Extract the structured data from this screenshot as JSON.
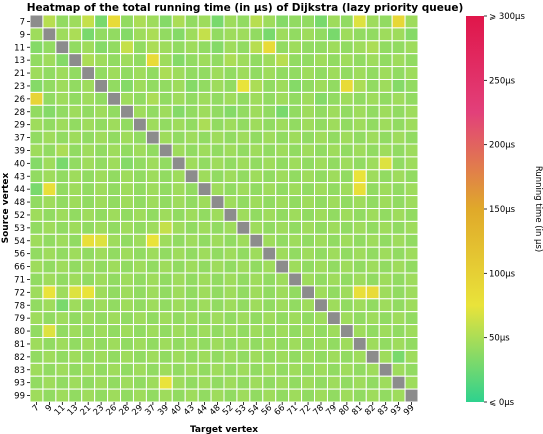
{
  "chart_data": {
    "type": "heatmap",
    "title": "Heatmap of the total running time (in μs) of Dijkstra (lazy priority queue)",
    "xlabel": "Target vertex",
    "ylabel": "Source vertex",
    "row_labels": [
      "7",
      "9",
      "11",
      "13",
      "21",
      "23",
      "26",
      "28",
      "29",
      "37",
      "39",
      "40",
      "43",
      "44",
      "48",
      "52",
      "53",
      "54",
      "56",
      "66",
      "71",
      "72",
      "78",
      "79",
      "80",
      "81",
      "82",
      "83",
      "93",
      "99"
    ],
    "col_labels": [
      "7",
      "9",
      "11",
      "13",
      "21",
      "23",
      "26",
      "28",
      "29",
      "37",
      "39",
      "40",
      "43",
      "44",
      "48",
      "52",
      "53",
      "54",
      "56",
      "66",
      "71",
      "72",
      "78",
      "79",
      "80",
      "81",
      "82",
      "83",
      "93",
      "99"
    ],
    "values": [
      [
        null,
        55,
        40,
        45,
        60,
        30,
        85,
        40,
        50,
        45,
        35,
        50,
        40,
        45,
        30,
        45,
        40,
        55,
        45,
        35,
        40,
        40,
        30,
        45,
        40,
        70,
        45,
        40,
        90,
        45
      ],
      [
        45,
        null,
        45,
        50,
        30,
        40,
        40,
        35,
        45,
        50,
        40,
        35,
        45,
        60,
        40,
        45,
        45,
        40,
        30,
        45,
        40,
        45,
        40,
        30,
        45,
        40,
        40,
        45,
        45,
        35
      ],
      [
        35,
        40,
        null,
        40,
        45,
        35,
        40,
        60,
        40,
        50,
        45,
        40,
        45,
        40,
        35,
        45,
        40,
        55,
        85,
        40,
        45,
        40,
        40,
        45,
        40,
        45,
        50,
        40,
        40,
        45
      ],
      [
        40,
        45,
        35,
        null,
        50,
        45,
        40,
        45,
        40,
        85,
        45,
        35,
        40,
        45,
        40,
        50,
        45,
        40,
        45,
        55,
        40,
        40,
        45,
        40,
        45,
        40,
        45,
        40,
        45,
        40
      ],
      [
        45,
        40,
        45,
        40,
        null,
        40,
        45,
        40,
        45,
        40,
        50,
        45,
        40,
        40,
        45,
        40,
        45,
        40,
        45,
        40,
        40,
        45,
        40,
        45,
        40,
        45,
        40,
        45,
        40,
        45
      ],
      [
        35,
        40,
        45,
        40,
        45,
        null,
        40,
        35,
        45,
        40,
        40,
        45,
        35,
        40,
        45,
        40,
        75,
        50,
        40,
        45,
        35,
        40,
        45,
        40,
        85,
        50,
        40,
        45,
        35,
        40
      ],
      [
        95,
        40,
        45,
        40,
        45,
        40,
        null,
        45,
        40,
        50,
        40,
        45,
        40,
        45,
        40,
        45,
        40,
        45,
        40,
        45,
        40,
        45,
        35,
        40,
        45,
        40,
        45,
        40,
        45,
        40
      ],
      [
        40,
        35,
        40,
        45,
        40,
        45,
        40,
        null,
        45,
        40,
        45,
        35,
        40,
        45,
        40,
        35,
        40,
        45,
        40,
        30,
        40,
        45,
        40,
        45,
        40,
        45,
        40,
        45,
        40,
        45
      ],
      [
        45,
        40,
        45,
        40,
        45,
        40,
        45,
        40,
        null,
        45,
        40,
        45,
        40,
        50,
        40,
        45,
        40,
        45,
        40,
        45,
        40,
        45,
        40,
        45,
        40,
        45,
        40,
        45,
        40,
        45
      ],
      [
        40,
        45,
        40,
        45,
        40,
        45,
        40,
        45,
        40,
        null,
        45,
        40,
        45,
        40,
        45,
        40,
        45,
        40,
        45,
        40,
        45,
        40,
        45,
        40,
        45,
        40,
        45,
        40,
        45,
        40
      ],
      [
        45,
        40,
        50,
        40,
        45,
        40,
        45,
        40,
        45,
        40,
        null,
        45,
        40,
        45,
        40,
        45,
        40,
        45,
        40,
        45,
        40,
        45,
        40,
        45,
        40,
        45,
        40,
        45,
        40,
        45
      ],
      [
        35,
        45,
        30,
        40,
        45,
        40,
        45,
        35,
        40,
        45,
        40,
        null,
        45,
        40,
        45,
        40,
        45,
        40,
        45,
        40,
        45,
        40,
        45,
        40,
        45,
        40,
        45,
        70,
        40,
        45
      ],
      [
        40,
        45,
        40,
        45,
        40,
        45,
        40,
        45,
        40,
        45,
        40,
        45,
        null,
        45,
        40,
        45,
        40,
        45,
        40,
        45,
        40,
        45,
        40,
        45,
        40,
        75,
        45,
        40,
        45,
        40
      ],
      [
        30,
        80,
        40,
        45,
        40,
        45,
        40,
        45,
        40,
        45,
        40,
        45,
        40,
        null,
        45,
        40,
        45,
        40,
        45,
        40,
        45,
        40,
        45,
        40,
        45,
        80,
        40,
        45,
        40,
        45
      ],
      [
        40,
        45,
        40,
        45,
        40,
        45,
        40,
        45,
        40,
        45,
        40,
        45,
        40,
        45,
        null,
        45,
        40,
        45,
        40,
        45,
        40,
        45,
        40,
        45,
        40,
        45,
        40,
        45,
        40,
        45
      ],
      [
        45,
        40,
        45,
        40,
        45,
        40,
        45,
        40,
        45,
        40,
        45,
        40,
        45,
        40,
        45,
        null,
        45,
        40,
        45,
        40,
        45,
        40,
        45,
        40,
        45,
        40,
        45,
        40,
        45,
        40
      ],
      [
        40,
        45,
        40,
        45,
        40,
        45,
        40,
        45,
        40,
        45,
        60,
        45,
        40,
        45,
        40,
        45,
        null,
        45,
        40,
        45,
        40,
        45,
        40,
        45,
        40,
        45,
        40,
        45,
        40,
        45
      ],
      [
        45,
        40,
        45,
        40,
        80,
        70,
        45,
        40,
        45,
        75,
        45,
        40,
        45,
        40,
        45,
        40,
        45,
        null,
        45,
        40,
        45,
        40,
        45,
        40,
        45,
        40,
        45,
        40,
        45,
        40
      ],
      [
        40,
        45,
        40,
        45,
        40,
        45,
        40,
        45,
        40,
        45,
        40,
        45,
        40,
        45,
        40,
        45,
        40,
        45,
        null,
        45,
        40,
        45,
        40,
        45,
        40,
        45,
        40,
        45,
        40,
        45
      ],
      [
        45,
        40,
        45,
        40,
        45,
        40,
        45,
        40,
        45,
        40,
        45,
        40,
        45,
        40,
        45,
        40,
        45,
        40,
        45,
        null,
        45,
        40,
        45,
        40,
        45,
        40,
        45,
        40,
        45,
        40
      ],
      [
        40,
        45,
        40,
        45,
        40,
        45,
        40,
        45,
        40,
        45,
        40,
        45,
        40,
        45,
        40,
        45,
        40,
        45,
        40,
        45,
        null,
        45,
        40,
        45,
        40,
        45,
        40,
        45,
        40,
        45
      ],
      [
        45,
        75,
        45,
        70,
        75,
        45,
        40,
        45,
        40,
        45,
        40,
        45,
        40,
        45,
        40,
        45,
        40,
        45,
        40,
        45,
        40,
        null,
        45,
        40,
        45,
        80,
        85,
        45,
        40,
        45
      ],
      [
        40,
        45,
        30,
        45,
        40,
        45,
        40,
        45,
        40,
        45,
        40,
        45,
        40,
        45,
        40,
        45,
        40,
        45,
        40,
        45,
        40,
        45,
        null,
        45,
        40,
        45,
        40,
        45,
        40,
        45
      ],
      [
        45,
        40,
        45,
        40,
        45,
        40,
        45,
        40,
        45,
        40,
        45,
        40,
        45,
        40,
        45,
        40,
        45,
        40,
        45,
        40,
        45,
        40,
        45,
        null,
        45,
        40,
        45,
        40,
        45,
        40
      ],
      [
        40,
        70,
        40,
        45,
        40,
        45,
        40,
        45,
        40,
        45,
        40,
        45,
        40,
        45,
        40,
        45,
        40,
        45,
        40,
        45,
        40,
        45,
        40,
        45,
        null,
        45,
        40,
        45,
        40,
        45
      ],
      [
        45,
        40,
        45,
        40,
        45,
        40,
        45,
        40,
        45,
        40,
        45,
        40,
        45,
        40,
        45,
        40,
        45,
        40,
        45,
        40,
        45,
        40,
        45,
        40,
        45,
        null,
        45,
        40,
        45,
        40
      ],
      [
        40,
        45,
        40,
        45,
        40,
        45,
        40,
        45,
        40,
        45,
        40,
        45,
        40,
        45,
        40,
        45,
        40,
        45,
        40,
        45,
        40,
        45,
        40,
        45,
        40,
        45,
        null,
        45,
        30,
        45
      ],
      [
        45,
        40,
        45,
        40,
        45,
        40,
        45,
        40,
        45,
        40,
        45,
        40,
        45,
        40,
        45,
        40,
        45,
        40,
        45,
        40,
        45,
        40,
        45,
        40,
        45,
        40,
        45,
        null,
        45,
        40
      ],
      [
        40,
        45,
        40,
        45,
        40,
        45,
        40,
        45,
        40,
        45,
        75,
        45,
        40,
        45,
        40,
        45,
        40,
        45,
        40,
        45,
        40,
        45,
        40,
        45,
        40,
        45,
        40,
        45,
        null,
        45
      ],
      [
        45,
        40,
        45,
        40,
        45,
        40,
        45,
        40,
        45,
        40,
        45,
        40,
        45,
        40,
        45,
        40,
        45,
        40,
        45,
        40,
        45,
        40,
        45,
        40,
        45,
        40,
        45,
        40,
        45,
        null
      ]
    ],
    "colorbar": {
      "label": "Running time (in μs)",
      "min": 0,
      "max": 300,
      "ticks": [
        0,
        50,
        100,
        150,
        200,
        250,
        300
      ],
      "tick_labels": [
        "⩽ 0μs",
        "50μs",
        "100μs",
        "150μs",
        "200μs",
        "250μs",
        "⩾ 300μs"
      ],
      "colors": [
        "#2ed28e",
        "#e9e33a",
        "#e0a92a",
        "#e2407a",
        "#e0164a"
      ]
    },
    "diagonal_color": "#8c8c8c",
    "grid": true
  }
}
